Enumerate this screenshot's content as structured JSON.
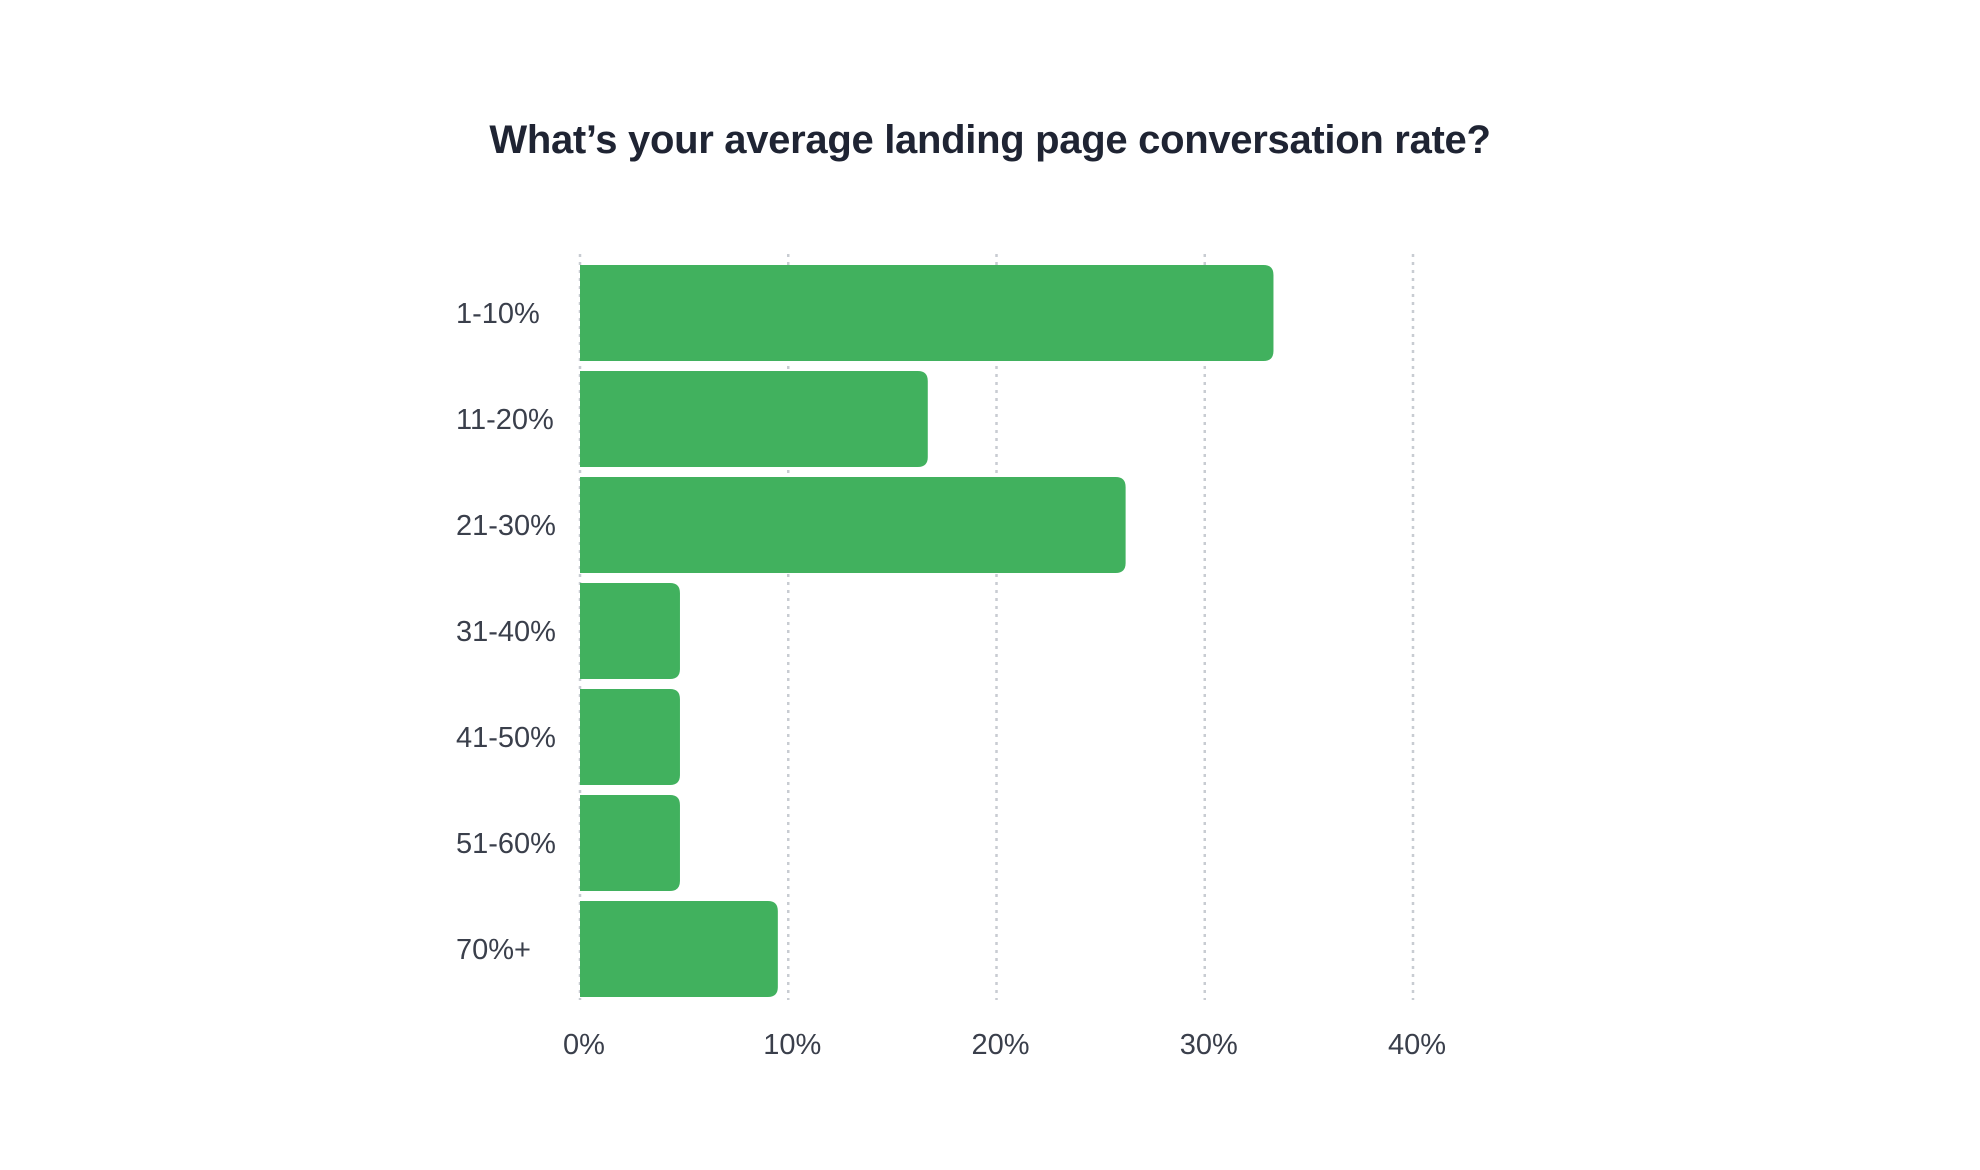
{
  "chart_data": {
    "type": "bar",
    "orientation": "horizontal",
    "title": "What’s your average landing page conversation rate?",
    "categories": [
      "1-10%",
      "11-20%",
      "21-30%",
      "31-40%",
      "41-50%",
      "51-60%",
      "70%+"
    ],
    "values": [
      33.3,
      16.7,
      26.2,
      4.8,
      4.8,
      4.8,
      9.5
    ],
    "unit": "%",
    "xlabel": "",
    "ylabel": "",
    "xlim": [
      0,
      40
    ],
    "xticks": [
      0,
      10,
      20,
      30,
      40
    ],
    "xtick_labels": [
      "0%",
      "10%",
      "20%",
      "30%",
      "40%"
    ],
    "grid": "vertical dotted",
    "legend": "none",
    "bar_color": "#41b15e",
    "gridline_color": "#c8ccd2",
    "title_color": "#1f2433",
    "label_color": "#3a3f4b"
  }
}
